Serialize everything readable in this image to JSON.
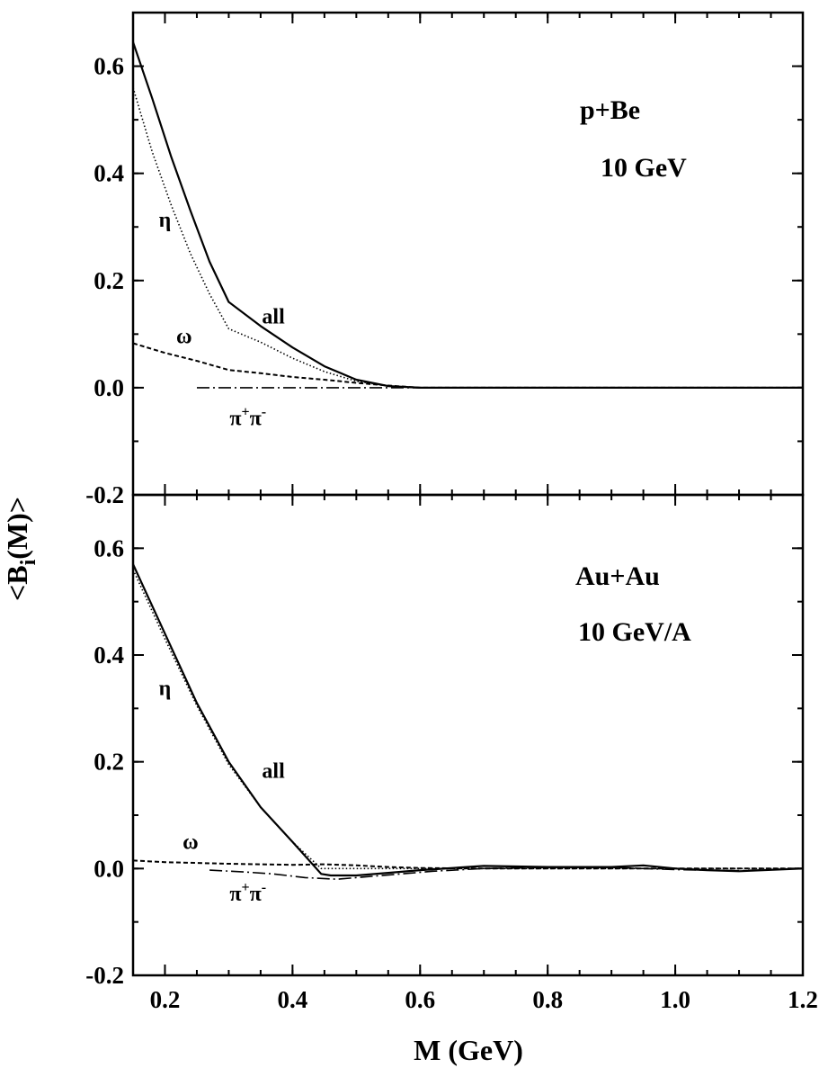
{
  "chart_data": [
    {
      "type": "line",
      "panel_labels": [
        "p+Be",
        "10 GeV"
      ],
      "xlim": [
        0.15,
        1.2
      ],
      "ylim": [
        -0.2,
        0.7
      ],
      "series": [
        {
          "name": "all",
          "style": "solid",
          "color": "#000000",
          "x": [
            0.15,
            0.18,
            0.21,
            0.24,
            0.27,
            0.3,
            0.35,
            0.4,
            0.45,
            0.5,
            0.55,
            0.6,
            0.7,
            0.8,
            1.0,
            1.2
          ],
          "y": [
            0.645,
            0.54,
            0.43,
            0.33,
            0.235,
            0.16,
            0.115,
            0.075,
            0.04,
            0.015,
            0.003,
            0.0,
            0.0,
            0.0,
            0.0,
            0.0
          ]
        },
        {
          "name": "η",
          "style": "dotted",
          "color": "#000000",
          "x": [
            0.15,
            0.18,
            0.21,
            0.24,
            0.27,
            0.3,
            0.35,
            0.4,
            0.45,
            0.5,
            0.55,
            0.6,
            0.7,
            0.8,
            1.0,
            1.2
          ],
          "y": [
            0.56,
            0.44,
            0.34,
            0.25,
            0.175,
            0.11,
            0.085,
            0.055,
            0.03,
            0.012,
            0.003,
            0.0,
            0.0,
            0.0,
            0.0,
            0.0
          ]
        },
        {
          "name": "ω",
          "style": "dashed",
          "color": "#000000",
          "x": [
            0.15,
            0.2,
            0.25,
            0.3,
            0.35,
            0.4,
            0.45,
            0.5,
            0.55,
            0.6,
            0.7,
            0.8,
            1.0,
            1.2
          ],
          "y": [
            0.083,
            0.065,
            0.05,
            0.033,
            0.027,
            0.02,
            0.015,
            0.009,
            0.004,
            0.0,
            0.0,
            0.0,
            0.0,
            0.0
          ]
        },
        {
          "name": "π⁺π⁻",
          "style": "dashdot",
          "color": "#000000",
          "x": [
            0.25,
            0.3,
            0.4,
            0.5,
            0.6,
            0.7,
            0.8,
            1.0,
            1.2
          ],
          "y": [
            0.0,
            0.0,
            0.0,
            0.0,
            0.0,
            0.0,
            0.0,
            0.0,
            0.0
          ]
        }
      ],
      "annotations": [
        {
          "text": "η",
          "x": 0.2,
          "y": 0.3
        },
        {
          "text": "all",
          "x": 0.37,
          "y": 0.12
        },
        {
          "text": "ω",
          "x": 0.23,
          "y": 0.083
        },
        {
          "text": "π",
          "sup1": "+",
          "text2": "π",
          "sup2": "-",
          "x": 0.33,
          "y": -0.07
        }
      ]
    },
    {
      "type": "line",
      "panel_labels": [
        "Au+Au",
        "10 GeV/A"
      ],
      "xlim": [
        0.15,
        1.2
      ],
      "ylim": [
        -0.2,
        0.7
      ],
      "series": [
        {
          "name": "all",
          "style": "solid",
          "color": "#000000",
          "x": [
            0.15,
            0.2,
            0.25,
            0.3,
            0.35,
            0.4,
            0.445,
            0.46,
            0.5,
            0.55,
            0.6,
            0.7,
            0.8,
            0.9,
            0.95,
            1.0,
            1.05,
            1.1,
            1.2
          ],
          "y": [
            0.57,
            0.44,
            0.31,
            0.2,
            0.115,
            0.05,
            -0.01,
            -0.013,
            -0.013,
            -0.008,
            -0.003,
            0.005,
            0.003,
            0.003,
            0.006,
            0.0,
            -0.003,
            -0.005,
            0.0
          ]
        },
        {
          "name": "η",
          "style": "dotted",
          "color": "#000000",
          "x": [
            0.15,
            0.2,
            0.25,
            0.3,
            0.35,
            0.4,
            0.445,
            0.46,
            0.6,
            0.8,
            1.0,
            1.2
          ],
          "y": [
            0.56,
            0.43,
            0.305,
            0.195,
            0.115,
            0.05,
            0.0,
            0.0,
            0.0,
            0.0,
            0.0,
            0.0
          ]
        },
        {
          "name": "ω",
          "style": "dashed",
          "color": "#000000",
          "x": [
            0.15,
            0.2,
            0.3,
            0.4,
            0.45,
            0.5,
            0.55,
            0.6,
            0.7,
            0.8,
            1.0,
            1.2
          ],
          "y": [
            0.015,
            0.012,
            0.009,
            0.007,
            0.008,
            0.006,
            0.003,
            0.001,
            0.0,
            0.0,
            0.0,
            0.0
          ]
        },
        {
          "name": "π⁺π⁻",
          "style": "dashdot",
          "color": "#000000",
          "x": [
            0.27,
            0.32,
            0.37,
            0.42,
            0.47,
            0.52,
            0.57,
            0.62,
            0.7,
            0.8,
            0.9,
            1.0,
            1.1,
            1.2
          ],
          "y": [
            -0.003,
            -0.006,
            -0.01,
            -0.017,
            -0.02,
            -0.015,
            -0.01,
            -0.005,
            0.0,
            0.002,
            0.002,
            -0.002,
            -0.004,
            0.0
          ]
        }
      ],
      "annotations": [
        {
          "text": "η",
          "x": 0.2,
          "y": 0.325
        },
        {
          "text": "all",
          "x": 0.37,
          "y": 0.17
        },
        {
          "text": "ω",
          "x": 0.24,
          "y": 0.037
        },
        {
          "text": "π",
          "sup1": "+",
          "text2": "π",
          "sup2": "-",
          "x": 0.33,
          "y": -0.06
        }
      ]
    }
  ],
  "x_axis": {
    "label": "M (GeV)",
    "ticks": [
      0.2,
      0.4,
      0.6,
      0.8,
      1.0,
      1.2
    ],
    "tick_labels": [
      "0.2",
      "0.4",
      "0.6",
      "0.8",
      "1.0",
      "1.2"
    ],
    "minor_step": 0.05
  },
  "y_axis": {
    "label_main": "<B",
    "label_sub": "i",
    "label_tail": "(M)>",
    "top_ticks": [
      0.6,
      0.4,
      0.2,
      0.0,
      -0.2
    ],
    "top_tick_labels": [
      "0.6",
      "0.4",
      "0.2",
      "0.0",
      "-0.2"
    ],
    "bottom_ticks": [
      0.6,
      0.4,
      0.2,
      0.0,
      -0.2
    ],
    "bottom_tick_labels": [
      "0.6",
      "0.4",
      "0.2",
      "0.0",
      "-0.2"
    ],
    "minor_step": 0.1
  }
}
